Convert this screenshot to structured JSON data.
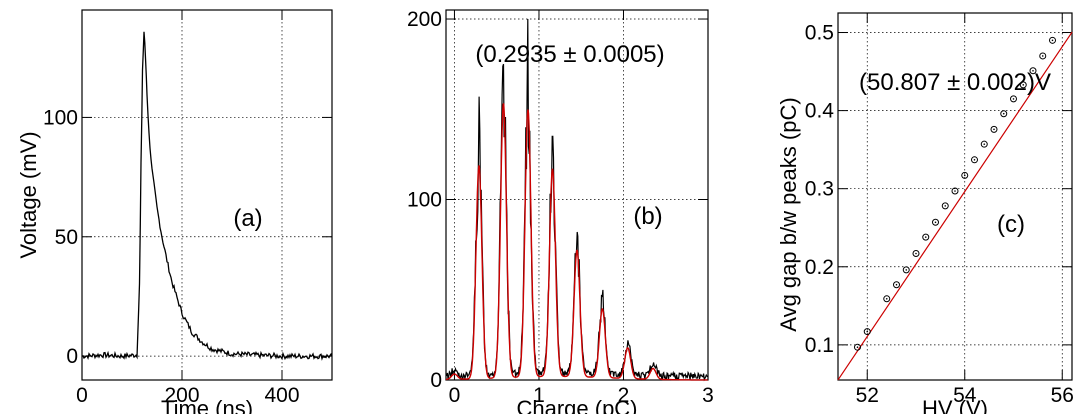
{
  "chart_data": [
    {
      "id": "a",
      "type": "line",
      "panel_label": "(a)",
      "xlabel": "Time (ns)",
      "ylabel": "Voltage (mV)",
      "xlim": [
        0,
        500
      ],
      "ylim": [
        -10,
        145
      ],
      "xticks": [
        0,
        200,
        400
      ],
      "yticks": [
        0,
        50,
        100
      ],
      "grid": true,
      "series": [
        {
          "color": "#000000",
          "x": [
            0,
            40,
            80,
            110,
            115,
            118,
            121,
            124,
            127,
            130,
            134,
            140,
            150,
            160,
            170,
            180,
            200,
            220,
            240,
            260,
            280,
            300,
            340,
            400,
            500
          ],
          "y": [
            0,
            0.5,
            0,
            0.5,
            30,
            80,
            120,
            136,
            125,
            110,
            93,
            78,
            62,
            50,
            40,
            31,
            18,
            10,
            6,
            3,
            2,
            1,
            0.5,
            0,
            0
          ]
        }
      ]
    },
    {
      "id": "b",
      "type": "line",
      "panel_label": "(b)",
      "annotation": "(0.2935 ± 0.0005)",
      "xlabel": "Charge (pC)",
      "ylabel": "",
      "xlim": [
        -0.1,
        3.0
      ],
      "ylim": [
        0,
        205
      ],
      "xticks": [
        0,
        1,
        2,
        3
      ],
      "yticks": [
        0,
        100,
        200
      ],
      "grid": true,
      "peaks": [
        {
          "x": 0.0,
          "data": 5,
          "fit": 3
        },
        {
          "x": 0.29,
          "data": 157,
          "fit": 118
        },
        {
          "x": 0.58,
          "data": 175,
          "fit": 152
        },
        {
          "x": 0.87,
          "data": 200,
          "fit": 148
        },
        {
          "x": 1.16,
          "data": 135,
          "fit": 115
        },
        {
          "x": 1.45,
          "data": 82,
          "fit": 70
        },
        {
          "x": 1.75,
          "data": 46,
          "fit": 38
        },
        {
          "x": 2.05,
          "data": 22,
          "fit": 17
        },
        {
          "x": 2.35,
          "data": 8,
          "fit": 6
        }
      ],
      "series": [
        {
          "color": "#000000"
        },
        {
          "color": "#cc0000"
        }
      ]
    },
    {
      "id": "c",
      "type": "scatter",
      "panel_label": "(c)",
      "annotation": "(50.807 ± 0.002)V",
      "xlabel": "HV (V)",
      "ylabel": "Avg gap b/w peaks (pC)",
      "xlim": [
        51.4,
        56.2
      ],
      "ylim": [
        0.055,
        0.525
      ],
      "xticks": [
        52,
        54,
        56
      ],
      "yticks": [
        0.1,
        0.2,
        0.3,
        0.4,
        0.5
      ],
      "grid": true,
      "fit": {
        "x0": 50.807,
        "slope": 0.0928,
        "color": "#cc0000"
      },
      "x": [
        51.8,
        52.0,
        52.4,
        52.6,
        52.8,
        53.0,
        53.2,
        53.4,
        53.6,
        53.8,
        54.0,
        54.2,
        54.4,
        54.6,
        54.8,
        55.0,
        55.2,
        55.4,
        55.6,
        55.8
      ],
      "y": [
        0.097,
        0.117,
        0.159,
        0.177,
        0.196,
        0.217,
        0.238,
        0.257,
        0.278,
        0.297,
        0.317,
        0.337,
        0.357,
        0.376,
        0.396,
        0.415,
        0.433,
        0.451,
        0.47,
        0.49
      ]
    }
  ]
}
